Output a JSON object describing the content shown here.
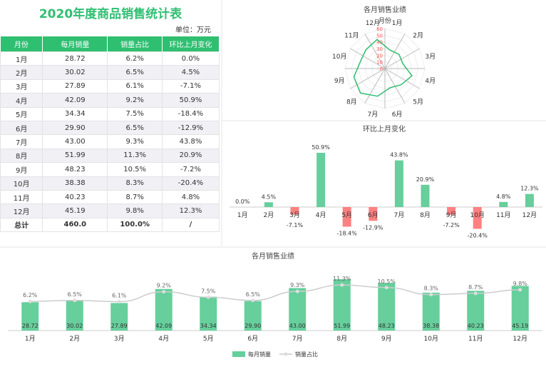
{
  "table": {
    "title": "2020年度商品销售统计表",
    "unit": "单位：万元",
    "headers": [
      "月份",
      "每月销量",
      "销量占比",
      "环比上月变化"
    ],
    "rows": [
      [
        "1月",
        "28.72",
        "6.2%",
        "0.0%"
      ],
      [
        "2月",
        "30.02",
        "6.5%",
        "4.5%"
      ],
      [
        "3月",
        "27.89",
        "6.1%",
        "-7.1%"
      ],
      [
        "4月",
        "42.09",
        "9.2%",
        "50.9%"
      ],
      [
        "5月",
        "34.34",
        "7.5%",
        "-18.4%"
      ],
      [
        "6月",
        "29.90",
        "6.5%",
        "-12.9%"
      ],
      [
        "7月",
        "43.00",
        "9.3%",
        "43.8%"
      ],
      [
        "8月",
        "51.99",
        "11.3%",
        "20.9%"
      ],
      [
        "9月",
        "48.23",
        "10.5%",
        "-7.2%"
      ],
      [
        "10月",
        "38.38",
        "8.3%",
        "-20.4%"
      ],
      [
        "11月",
        "40.23",
        "8.7%",
        "4.8%"
      ],
      [
        "12月",
        "45.19",
        "9.8%",
        "12.3%"
      ]
    ],
    "total": [
      "总计",
      "460.0",
      "100.0%",
      "/"
    ]
  },
  "colors": {
    "green": "#2fbf71",
    "bar_green": "#66cf9c",
    "red": "#ff8080",
    "line": "#cccccc"
  },
  "chart_data": [
    {
      "type": "radar",
      "title": "各月销售业绩",
      "axis_name": "月份",
      "categories": [
        "1月",
        "2月",
        "3月",
        "4月",
        "5月",
        "6月",
        "7月",
        "8月",
        "9月",
        "10月",
        "11月",
        "12月"
      ],
      "values": [
        28.72,
        30.02,
        27.89,
        42.09,
        34.34,
        29.9,
        43.0,
        51.99,
        48.23,
        38.38,
        40.23,
        45.19
      ],
      "ticks": [
        0,
        10,
        20,
        30,
        40,
        50,
        60
      ],
      "ylim": [
        0,
        60
      ]
    },
    {
      "type": "bar",
      "title": "环比上月变化",
      "categories": [
        "1月",
        "2月",
        "3月",
        "4月",
        "5月",
        "6月",
        "7月",
        "8月",
        "9月",
        "10月",
        "11月",
        "12月"
      ],
      "values": [
        0.0,
        4.5,
        -7.1,
        50.9,
        -18.4,
        -12.9,
        43.8,
        20.9,
        -7.2,
        -20.4,
        4.8,
        12.3
      ],
      "labels": [
        "0.0%",
        "4.5%",
        "-7.1%",
        "50.9%",
        "-18.4%",
        "-12.9%",
        "43.8%",
        "20.9%",
        "-7.2%",
        "-20.4%",
        "4.8%",
        "12.3%"
      ]
    },
    {
      "type": "bar+line",
      "title": "各月销售业绩",
      "categories": [
        "1月",
        "2月",
        "3月",
        "4月",
        "5月",
        "6月",
        "7月",
        "8月",
        "9月",
        "10月",
        "11月",
        "12月"
      ],
      "series": [
        {
          "name": "每月销量",
          "type": "bar",
          "values": [
            28.72,
            30.02,
            27.89,
            42.09,
            34.34,
            29.9,
            43.0,
            51.99,
            48.23,
            38.38,
            40.23,
            45.19
          ],
          "labels": [
            "28.72",
            "30.02",
            "27.89",
            "42.09",
            "34.34",
            "29.90",
            "43.00",
            "51.99",
            "48.23",
            "38.38",
            "40.23",
            "45.19"
          ]
        },
        {
          "name": "销量占比",
          "type": "line",
          "values": [
            6.2,
            6.5,
            6.1,
            9.2,
            7.5,
            6.5,
            9.3,
            11.3,
            10.5,
            8.3,
            8.7,
            9.8
          ],
          "labels": [
            "6.2%",
            "6.5%",
            "6.1%",
            "9.2%",
            "7.5%",
            "6.5%",
            "9.3%",
            "11.3%",
            "10.5%",
            "8.3%",
            "8.7%",
            "9.8%"
          ]
        }
      ],
      "legend": "bottom"
    }
  ]
}
